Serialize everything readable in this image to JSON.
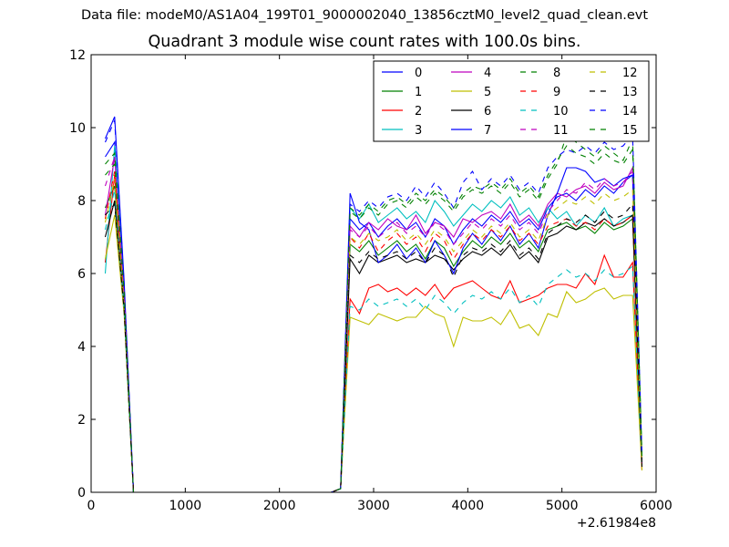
{
  "figure": {
    "suptitle": "Data file: modeM0/AS1A04_199T01_9000002040_13856cztM0_level2_quad_clean.evt",
    "title": "Quadrant 3 module wise count rates with 100.0s bins."
  },
  "chart_data": {
    "type": "line",
    "title": "Quadrant 3 module wise count rates with 100.0s bins.",
    "xlabel": "",
    "ylabel": "",
    "x_offset_label": "+2.61984e8",
    "xlim": [
      0,
      6000
    ],
    "ylim": [
      0,
      12
    ],
    "xticks": [
      0,
      1000,
      2000,
      3000,
      4000,
      5000,
      6000
    ],
    "yticks": [
      0,
      2,
      4,
      6,
      8,
      10,
      12
    ],
    "xtick_labels": [
      "0",
      "1000",
      "2000",
      "3000",
      "4000",
      "5000",
      "6000"
    ],
    "ytick_labels": [
      "0",
      "2",
      "4",
      "6",
      "8",
      "10",
      "12"
    ],
    "grid": false,
    "legend_position": "top-right",
    "legend_columns": 4,
    "x": [
      150,
      250,
      350,
      450,
      2550,
      2650,
      2750,
      2850,
      2950,
      3050,
      3150,
      3250,
      3350,
      3450,
      3550,
      3650,
      3750,
      3850,
      3950,
      4050,
      4150,
      4250,
      4350,
      4450,
      4550,
      4650,
      4750,
      4850,
      4950,
      5050,
      5150,
      5250,
      5350,
      5450,
      5550,
      5650,
      5750,
      5850
    ],
    "series": [
      {
        "name": "0",
        "color": "#0000ff",
        "dash": "solid",
        "values": [
          9.2,
          9.6,
          5.5,
          0,
          0,
          0.1,
          7.5,
          7.2,
          7.4,
          7.0,
          7.3,
          7.5,
          7.2,
          7.4,
          7.0,
          7.5,
          7.3,
          6.8,
          7.2,
          7.5,
          7.3,
          7.6,
          7.4,
          7.7,
          7.3,
          7.5,
          7.2,
          7.8,
          8.1,
          8.2,
          8.0,
          8.3,
          8.1,
          8.4,
          8.2,
          8.5,
          8.7,
          0.8
        ]
      },
      {
        "name": "1",
        "color": "#008000",
        "dash": "solid",
        "values": [
          7.8,
          8.4,
          5.2,
          0,
          0,
          0.1,
          6.8,
          6.6,
          6.9,
          6.5,
          6.7,
          6.9,
          6.6,
          6.8,
          6.4,
          6.9,
          6.7,
          6.2,
          6.6,
          6.9,
          6.7,
          7.0,
          6.8,
          7.1,
          6.7,
          6.9,
          6.6,
          7.2,
          7.3,
          7.4,
          7.2,
          7.3,
          7.1,
          7.4,
          7.2,
          7.3,
          7.5,
          0.7
        ]
      },
      {
        "name": "2",
        "color": "#ff0000",
        "dash": "solid",
        "values": [
          6.3,
          8.7,
          5.0,
          0,
          0,
          0.1,
          5.3,
          4.9,
          5.6,
          5.7,
          5.5,
          5.6,
          5.4,
          5.6,
          5.4,
          5.7,
          5.3,
          5.6,
          5.7,
          5.8,
          5.6,
          5.4,
          5.3,
          5.8,
          5.2,
          5.3,
          5.4,
          5.6,
          5.7,
          5.7,
          5.6,
          6.0,
          5.7,
          6.5,
          5.9,
          5.9,
          6.3,
          0.6
        ]
      },
      {
        "name": "3",
        "color": "#00bfbf",
        "dash": "solid",
        "values": [
          6.0,
          9.5,
          5.6,
          0,
          0,
          0.1,
          7.8,
          7.5,
          7.9,
          7.4,
          7.6,
          7.8,
          7.5,
          7.7,
          7.4,
          8.0,
          7.7,
          7.3,
          7.6,
          7.9,
          7.7,
          8.0,
          7.8,
          8.1,
          7.6,
          7.8,
          7.4,
          7.8,
          7.5,
          7.7,
          7.3,
          7.6,
          7.4,
          7.8,
          7.3,
          7.5,
          7.6,
          0.8
        ]
      },
      {
        "name": "4",
        "color": "#bf00bf",
        "dash": "solid",
        "values": [
          7.6,
          9.2,
          5.3,
          0,
          0,
          0.1,
          7.3,
          7.0,
          7.4,
          7.2,
          7.5,
          7.3,
          7.2,
          7.6,
          7.1,
          7.4,
          7.3,
          7.0,
          7.5,
          7.4,
          7.6,
          7.7,
          7.5,
          7.9,
          7.4,
          7.6,
          7.3,
          7.9,
          8.2,
          8.1,
          8.3,
          8.4,
          8.2,
          8.5,
          8.3,
          8.4,
          8.9,
          0.8
        ]
      },
      {
        "name": "5",
        "color": "#bfbf00",
        "dash": "solid",
        "values": [
          6.4,
          7.6,
          4.9,
          0,
          0,
          0.1,
          4.8,
          4.7,
          4.6,
          4.9,
          4.8,
          4.7,
          4.8,
          4.8,
          5.1,
          4.9,
          4.8,
          4.0,
          4.8,
          4.7,
          4.7,
          4.8,
          4.6,
          5.0,
          4.5,
          4.6,
          4.3,
          4.9,
          4.8,
          5.5,
          5.2,
          5.3,
          5.5,
          5.6,
          5.3,
          5.4,
          5.4,
          0.6
        ]
      },
      {
        "name": "6",
        "color": "#000000",
        "dash": "solid",
        "values": [
          7.0,
          8.0,
          5.1,
          0,
          0,
          0.1,
          6.4,
          6.0,
          6.5,
          6.3,
          6.4,
          6.5,
          6.3,
          6.4,
          6.3,
          6.5,
          6.4,
          6.1,
          6.4,
          6.6,
          6.5,
          6.7,
          6.5,
          6.8,
          6.4,
          6.6,
          6.3,
          7.0,
          7.1,
          7.3,
          7.2,
          7.4,
          7.3,
          7.5,
          7.3,
          7.4,
          7.6,
          0.7
        ]
      },
      {
        "name": "7",
        "color": "#0000ff",
        "dash": "solid",
        "values": [
          9.7,
          10.3,
          5.8,
          0,
          0,
          0.1,
          8.2,
          7.4,
          7.2,
          6.3,
          6.5,
          6.8,
          6.4,
          6.7,
          6.3,
          6.9,
          6.5,
          6.0,
          6.7,
          7.1,
          6.8,
          7.2,
          6.9,
          7.3,
          6.8,
          7.1,
          6.7,
          7.6,
          8.2,
          8.9,
          8.9,
          8.8,
          8.5,
          8.6,
          8.4,
          8.6,
          8.7,
          0.9
        ]
      },
      {
        "name": "8",
        "color": "#008000",
        "dash": "dashed",
        "values": [
          8.7,
          9.0,
          5.4,
          0,
          0,
          0.1,
          7.7,
          7.5,
          7.8,
          7.6,
          7.9,
          8.0,
          7.8,
          8.1,
          7.9,
          8.2,
          8.0,
          7.7,
          8.1,
          8.3,
          8.2,
          8.4,
          8.2,
          8.5,
          8.1,
          8.3,
          8.0,
          8.6,
          9.0,
          9.8,
          9.6,
          9.4,
          9.2,
          9.5,
          9.3,
          9.1,
          9.7,
          1.0
        ]
      },
      {
        "name": "9",
        "color": "#ff0000",
        "dash": "dashed",
        "values": [
          7.5,
          8.8,
          5.2,
          0,
          0,
          0.1,
          7.0,
          6.7,
          7.1,
          6.6,
          6.9,
          7.1,
          6.8,
          7.0,
          6.6,
          7.1,
          6.9,
          6.4,
          6.8,
          7.1,
          6.9,
          7.2,
          7.0,
          7.3,
          6.9,
          7.1,
          6.8,
          7.3,
          7.4,
          7.5,
          7.3,
          7.4,
          7.2,
          7.5,
          7.3,
          7.4,
          7.6,
          0.7
        ]
      },
      {
        "name": "10",
        "color": "#00bfbf",
        "dash": "dashed",
        "values": [
          7.2,
          8.3,
          5.0,
          0,
          0,
          0.1,
          5.1,
          5.0,
          5.3,
          5.1,
          5.2,
          5.3,
          5.1,
          5.3,
          5.0,
          5.4,
          5.2,
          4.9,
          5.2,
          5.4,
          5.3,
          5.5,
          5.3,
          5.6,
          5.2,
          5.4,
          5.1,
          5.7,
          5.9,
          6.1,
          5.9,
          6.0,
          5.8,
          6.1,
          5.9,
          6.0,
          6.2,
          0.7
        ]
      },
      {
        "name": "11",
        "color": "#bf00bf",
        "dash": "dashed",
        "values": [
          8.4,
          9.2,
          5.4,
          0,
          0,
          0.1,
          7.2,
          7.0,
          7.3,
          7.0,
          7.2,
          7.4,
          7.1,
          7.3,
          7.0,
          7.4,
          7.2,
          6.8,
          7.1,
          7.4,
          7.2,
          7.5,
          7.3,
          7.6,
          7.2,
          7.4,
          7.1,
          7.7,
          8.0,
          8.3,
          8.2,
          8.5,
          8.3,
          8.6,
          8.4,
          8.5,
          8.8,
          0.8
        ]
      },
      {
        "name": "12",
        "color": "#bfbf00",
        "dash": "dashed",
        "values": [
          7.4,
          8.6,
          5.1,
          0,
          0,
          0.1,
          7.0,
          6.8,
          7.1,
          6.9,
          7.0,
          7.2,
          6.9,
          7.1,
          6.8,
          7.2,
          7.0,
          6.6,
          6.9,
          7.2,
          7.0,
          7.3,
          7.1,
          7.4,
          7.0,
          7.2,
          6.9,
          7.6,
          7.8,
          8.0,
          7.9,
          8.1,
          7.9,
          8.2,
          8.0,
          8.1,
          8.3,
          0.8
        ]
      },
      {
        "name": "13",
        "color": "#000000",
        "dash": "dashed",
        "values": [
          7.6,
          7.9,
          5.0,
          0,
          0,
          0.1,
          6.5,
          6.3,
          6.6,
          6.4,
          6.5,
          6.6,
          6.4,
          6.6,
          6.3,
          6.7,
          6.5,
          5.9,
          6.5,
          6.7,
          6.6,
          6.8,
          6.6,
          6.9,
          6.5,
          6.7,
          6.4,
          7.1,
          7.3,
          7.5,
          7.4,
          7.6,
          7.4,
          7.7,
          7.5,
          7.6,
          7.9,
          0.7
        ]
      },
      {
        "name": "14",
        "color": "#0000ff",
        "dash": "dashed",
        "values": [
          9.6,
          10.2,
          5.7,
          0,
          0,
          0.1,
          7.9,
          7.7,
          8.0,
          7.8,
          8.1,
          8.2,
          8.0,
          8.4,
          8.1,
          8.5,
          8.2,
          7.8,
          8.5,
          8.8,
          8.3,
          8.6,
          8.4,
          8.7,
          8.3,
          8.5,
          8.2,
          8.9,
          9.2,
          9.4,
          9.3,
          9.5,
          9.3,
          9.6,
          9.4,
          9.5,
          9.8,
          1.0
        ]
      },
      {
        "name": "15",
        "color": "#008000",
        "dash": "dashed",
        "values": [
          9.0,
          9.3,
          5.5,
          0,
          0,
          0.1,
          7.8,
          7.6,
          7.9,
          7.7,
          8.0,
          8.1,
          7.9,
          8.2,
          8.0,
          8.3,
          8.1,
          7.8,
          8.2,
          8.4,
          8.3,
          8.5,
          8.3,
          8.6,
          8.2,
          8.4,
          8.1,
          8.7,
          9.1,
          9.5,
          9.3,
          9.2,
          9.0,
          9.3,
          9.1,
          9.0,
          9.4,
          1.0
        ]
      }
    ]
  }
}
